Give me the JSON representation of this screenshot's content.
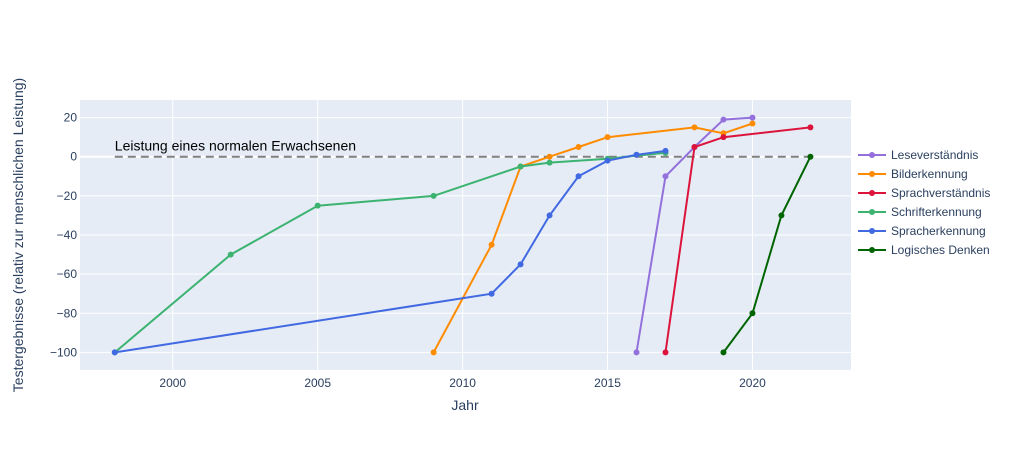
{
  "chart_data": {
    "type": "line",
    "xlabel": "Jahr",
    "ylabel": "Testergebnisse (relativ zur menschlichen Leistung)",
    "xlim": [
      1996.8,
      2023.4
    ],
    "ylim": [
      -109,
      29
    ],
    "xticks": [
      2000,
      2005,
      2010,
      2015,
      2020
    ],
    "yticks": [
      -100,
      -80,
      -60,
      -40,
      -20,
      0,
      20
    ],
    "grid": true,
    "legend_position": "right",
    "reference_line": {
      "y": 0,
      "x_range": [
        1998,
        2022
      ],
      "style": "dashed",
      "color": "#808080"
    },
    "annotation": {
      "text": "Leistung eines normalen Erwachsenen",
      "x": 1998,
      "y": 0
    },
    "series": [
      {
        "name": "Leseverständnis",
        "color": "#9370db",
        "x": [
          2016,
          2017,
          2018,
          2019,
          2020
        ],
        "y": [
          -100,
          -10,
          5,
          19,
          20
        ]
      },
      {
        "name": "Bilderkennung",
        "color": "#ff8c00",
        "x": [
          2009,
          2011,
          2012,
          2013,
          2014,
          2015,
          2018,
          2019,
          2020
        ],
        "y": [
          -100,
          -45,
          -5,
          0,
          5,
          10,
          15,
          12,
          17
        ]
      },
      {
        "name": "Sprachverständnis",
        "color": "#dc143c",
        "x": [
          2017,
          2018,
          2019,
          2022
        ],
        "y": [
          -100,
          5,
          10,
          15
        ]
      },
      {
        "name": "Schrifterkennung",
        "color": "#3cb371",
        "x": [
          1998,
          2002,
          2005,
          2009,
          2012,
          2013,
          2015,
          2017
        ],
        "y": [
          -100,
          -50,
          -25,
          -20,
          -5,
          -3,
          -1,
          2
        ]
      },
      {
        "name": "Spracherkennung",
        "color": "#4169e1",
        "x": [
          1998,
          2011,
          2012,
          2013,
          2014,
          2015,
          2016,
          2017
        ],
        "y": [
          -100,
          -70,
          -55,
          -30,
          -10,
          -2,
          1,
          3
        ]
      },
      {
        "name": "Logisches Denken",
        "color": "#006400",
        "x": [
          2019,
          2020,
          2021,
          2022
        ],
        "y": [
          -100,
          -80,
          -30,
          0
        ]
      }
    ]
  }
}
